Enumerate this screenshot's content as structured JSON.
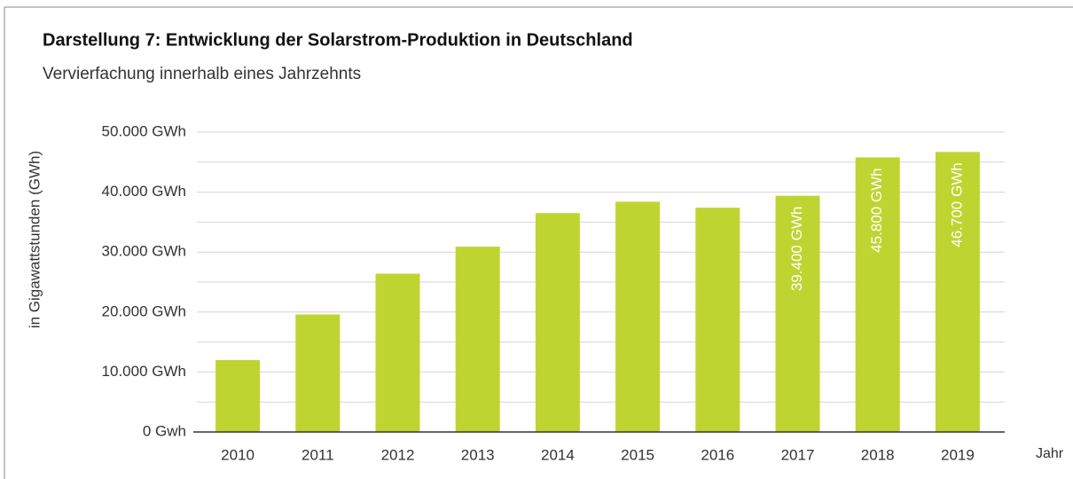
{
  "chart_data": {
    "type": "bar",
    "title": "Darstellung 7: Entwicklung der Solarstrom-Produktion in Deutschland",
    "subtitle": "Vervierfachung innerhalb eines Jahrzehnts",
    "y_label": "in Gigawattstunden (GWh)",
    "x_label": "Jahr",
    "categories": [
      "2010",
      "2011",
      "2012",
      "2013",
      "2014",
      "2015",
      "2016",
      "2017",
      "2018",
      "2019"
    ],
    "values": [
      12000,
      19600,
      26400,
      30900,
      36500,
      38400,
      37400,
      39400,
      45800,
      46700
    ],
    "value_labels": [
      null,
      null,
      null,
      null,
      null,
      null,
      null,
      "39.400 GWh",
      "45.800 GWh",
      "46.700 GWh"
    ],
    "color": "#bed531",
    "ylim": [
      0,
      50000
    ],
    "yticks": [
      {
        "value": 0,
        "label": "0 Gwh"
      },
      {
        "value": 10000,
        "label": "10.000 GWh"
      },
      {
        "value": 20000,
        "label": "20.000 GWh"
      },
      {
        "value": 30000,
        "label": "30.000 GWh"
      },
      {
        "value": 40000,
        "label": "40.000 GWh"
      },
      {
        "value": 50000,
        "label": "50.000 GWh"
      }
    ],
    "minor_yticks": [
      5000,
      15000,
      25000,
      35000,
      45000
    ],
    "grid": true
  }
}
